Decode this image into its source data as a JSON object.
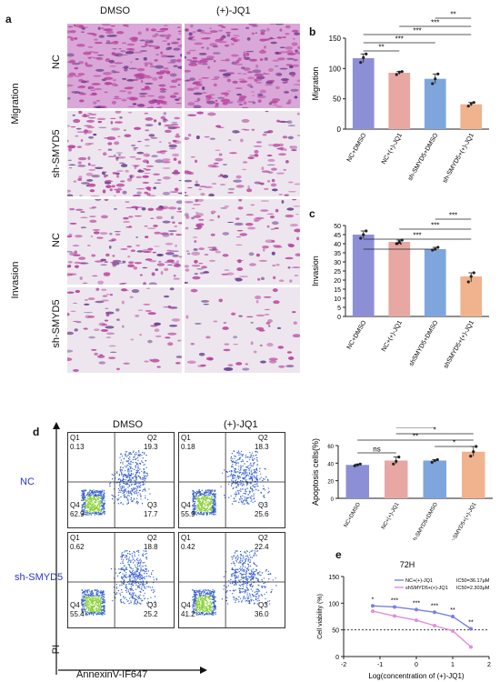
{
  "panel_a": {
    "letter": "a",
    "columns": [
      "DMSO",
      "(+)-JQ1"
    ],
    "groups": [
      {
        "name": "Migration",
        "rows": [
          "NC",
          "sh-SMYD5"
        ]
      },
      {
        "name": "Invasion",
        "rows": [
          "NC",
          "sh-SMYD5"
        ]
      }
    ]
  },
  "panel_d": {
    "letter": "d",
    "columns": [
      "DMSO",
      "(+)-JQ1"
    ],
    "rows": [
      "NC",
      "sh-SMYD5"
    ],
    "x_axis": "AnnexinV-IF647",
    "y_axis": "PI",
    "plots": [
      {
        "q1": "Q1",
        "q1v": "0.13",
        "q2": "Q2",
        "q2v": "19.3",
        "q3": "Q3",
        "q3v": "17.7",
        "q4": "Q4",
        "q4v": "62.9"
      },
      {
        "q1": "Q1",
        "q1v": "0.18",
        "q2": "Q2",
        "q2v": "18.3",
        "q3": "Q3",
        "q3v": "25.6",
        "q4": "Q4",
        "q4v": "55.9"
      },
      {
        "q1": "Q1",
        "q1v": "0.62",
        "q2": "Q2",
        "q2v": "18.8",
        "q3": "Q3",
        "q3v": "25.2",
        "q4": "Q4",
        "q4v": "55.4"
      },
      {
        "q1": "Q1",
        "q1v": "0.42",
        "q2": "Q2",
        "q2v": "22.4",
        "q3": "Q3",
        "q3v": "36.0",
        "q4": "Q4",
        "q4v": "41.2"
      }
    ]
  },
  "colors": {
    "bar1": "#8d8fd6",
    "bar2": "#e7a8a3",
    "bar3": "#7ea6dd",
    "bar4": "#f0b38e",
    "blue_label": "#2b35c9",
    "stain": "#b9449e"
  },
  "chart_data": [
    {
      "id": "b",
      "letter": "b",
      "type": "bar",
      "categories": [
        "NC+DMSO",
        "NC+(+)-JQ1",
        "sh-SMYD5+DMSO",
        "sh-SMYD5+(+)-JQ1"
      ],
      "values": [
        117,
        93,
        83,
        41
      ],
      "points": [
        [
          110,
          118,
          124
        ],
        [
          90,
          94,
          95
        ],
        [
          75,
          83,
          91
        ],
        [
          38,
          42,
          44
        ]
      ],
      "ylabel": "Migration",
      "ylim": [
        0,
        150
      ],
      "yticks": [
        "0",
        "50",
        "100",
        "150"
      ],
      "significance": [
        "**",
        "***",
        "***",
        "***",
        "**"
      ]
    },
    {
      "id": "c",
      "letter": "c",
      "type": "bar",
      "categories": [
        "NC+DMSO",
        "NC+(+)-JQ1",
        "shSMYD5+DMSO",
        "shSMYD5+(+)-JQ1"
      ],
      "values": [
        45,
        41,
        37,
        22
      ],
      "points": [
        [
          43,
          45,
          47
        ],
        [
          40,
          41,
          42
        ],
        [
          36.5,
          37,
          38
        ],
        [
          19,
          22,
          24
        ]
      ],
      "ylabel": "Invasion",
      "ylim": [
        0,
        50
      ],
      "yticks": [
        "0",
        "5",
        "10",
        "15",
        "20",
        "25",
        "30",
        "35",
        "40",
        "45",
        "50"
      ],
      "significance": [
        "**",
        "***",
        "***",
        "***"
      ]
    },
    {
      "id": "apoptosis",
      "type": "bar",
      "categories": [
        "NC+DMSO",
        "NC+(+)-JQ1",
        "sh-SMYD5+DMSO",
        "sh-SMYD5+(+)-JQ1"
      ],
      "values": [
        38,
        43,
        43,
        53
      ],
      "points": [
        [
          37,
          38,
          39
        ],
        [
          39,
          42,
          47
        ],
        [
          41,
          43,
          44
        ],
        [
          48,
          53,
          59
        ]
      ],
      "ylabel": "Apoptosis cells(%)",
      "ylim": [
        0,
        60
      ],
      "yticks": [
        "0",
        "20",
        "40",
        "60"
      ],
      "significance": [
        "ns",
        "*",
        "**",
        "*",
        "*"
      ]
    },
    {
      "id": "e",
      "letter": "e",
      "type": "line",
      "title": "72H",
      "xlabel": "Log(concentration of (+)-JQ1)",
      "ylabel": "Cell viability (%)",
      "xlim": [
        -2,
        2
      ],
      "ylim": [
        0,
        150
      ],
      "xticks": [
        "-2",
        "-1",
        "0",
        "1",
        "2"
      ],
      "yticks": [
        "0",
        "50",
        "100",
        "150"
      ],
      "reference_line": 50,
      "series": [
        {
          "name": "NC+(+)-JQ1",
          "ic50": "IC50=36.17μM",
          "color": "#7b7fe0",
          "x": [
            -1.2,
            -0.6,
            0,
            0.5,
            1,
            1.5
          ],
          "y": [
            95,
            93,
            88,
            83,
            75,
            52
          ]
        },
        {
          "name": "shSMYD5+(+)-JQ1",
          "ic50": "IC50=2.303μM",
          "color": "#e08fd8",
          "x": [
            -1.2,
            -0.6,
            0,
            0.5,
            1,
            1.5
          ],
          "y": [
            85,
            76,
            68,
            58,
            48,
            18
          ]
        }
      ],
      "significance": [
        "*",
        "***",
        "***",
        "***",
        "**",
        "**"
      ]
    }
  ]
}
